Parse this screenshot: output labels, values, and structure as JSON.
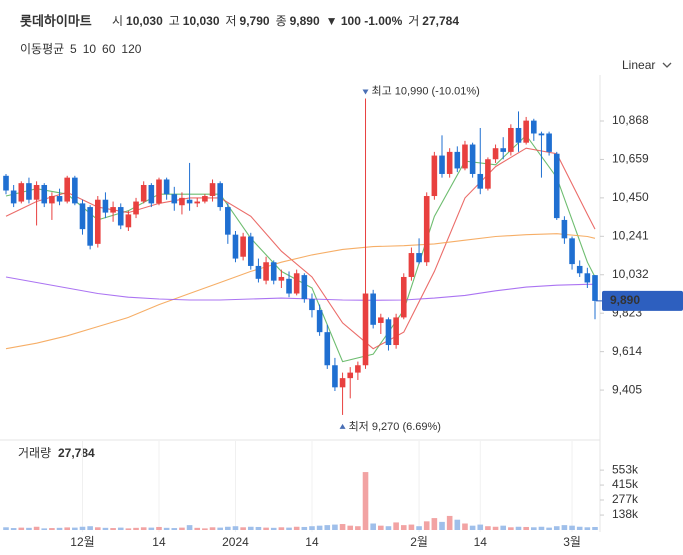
{
  "chart_data": {
    "type": "candlestick",
    "title": "롯데하이마트",
    "summary": [
      {
        "label": "시",
        "value": "10,030"
      },
      {
        "label": "고",
        "value": "10,030"
      },
      {
        "label": "저",
        "value": "9,790"
      },
      {
        "label": "종",
        "value": "9,890"
      }
    ],
    "change": "▼ 100 -1.00%",
    "change_color": "#1f6fd1",
    "volume_summary": {
      "label": "거",
      "value": "27,784"
    },
    "ma_label": "이동평균",
    "scale_label": "Linear",
    "up_color": "#e8403f",
    "down_color": "#1f6fd1",
    "categories": [
      null,
      null,
      null,
      null,
      null,
      null,
      null,
      null,
      null,
      null,
      "12월",
      null,
      null,
      null,
      null,
      null,
      null,
      null,
      null,
      null,
      "14",
      null,
      null,
      null,
      null,
      null,
      null,
      null,
      null,
      null,
      "2024",
      null,
      null,
      null,
      null,
      null,
      null,
      null,
      null,
      null,
      "14",
      null,
      null,
      null,
      null,
      null,
      null,
      null,
      null,
      null,
      null,
      null,
      null,
      null,
      "2월",
      null,
      null,
      null,
      null,
      null,
      null,
      null,
      "14",
      null,
      null,
      null,
      null,
      null,
      null,
      null,
      null,
      null,
      null,
      null,
      "3월",
      null,
      null,
      null
    ],
    "open": [
      10570,
      10490,
      10430,
      10530,
      10440,
      10520,
      10420,
      10460,
      10430,
      10560,
      10420,
      10400,
      10200,
      10440,
      10370,
      10400,
      10290,
      10360,
      10430,
      10520,
      10420,
      10550,
      10470,
      10410,
      10440,
      10420,
      10430,
      10460,
      10530,
      10400,
      10250,
      10130,
      10240,
      10080,
      10000,
      10100,
      10000,
      10010,
      9930,
      10030,
      9900,
      9840,
      9720,
      9540,
      9420,
      9470,
      9500,
      9540,
      9930,
      9770,
      9790,
      9650,
      9800,
      10020,
      10150,
      10100,
      10460,
      10680,
      10580,
      10700,
      10610,
      10740,
      10580,
      10500,
      10660,
      10720,
      10700,
      10830,
      10750,
      10870,
      10800,
      10800,
      10690,
      10330,
      10230,
      10080,
      10040,
      10030
    ],
    "high": [
      10580,
      10520,
      10540,
      10560,
      10540,
      10530,
      10480,
      10500,
      10570,
      10570,
      10440,
      10410,
      10460,
      10480,
      10430,
      10420,
      10380,
      10450,
      10540,
      10530,
      10560,
      10560,
      10510,
      10480,
      10640,
      10450,
      10470,
      10550,
      10540,
      10420,
      10270,
      10260,
      10260,
      10120,
      10130,
      10110,
      10060,
      10050,
      10060,
      10040,
      9930,
      9870,
      9760,
      9580,
      9500,
      9530,
      9560,
      10990,
      9950,
      9820,
      9800,
      9820,
      10040,
      10180,
      10230,
      10480,
      10700,
      10790,
      10720,
      10730,
      10760,
      10750,
      10830,
      10670,
      10740,
      10780,
      10850,
      10920,
      10890,
      10880,
      10810,
      10810,
      10700,
      10350,
      10240,
      10110,
      10070,
      10030
    ],
    "low": [
      10470,
      10400,
      10420,
      10420,
      10300,
      10400,
      10330,
      10410,
      10420,
      10410,
      10250,
      10170,
      10180,
      10340,
      10320,
      10280,
      10270,
      10340,
      10420,
      10400,
      10410,
      10440,
      10380,
      10360,
      10380,
      10400,
      10420,
      10430,
      10380,
      10200,
      10100,
      10110,
      10060,
      9990,
      9980,
      9980,
      9960,
      9910,
      9920,
      9880,
      9800,
      9700,
      9520,
      9400,
      9270,
      9360,
      9460,
      9520,
      9740,
      9710,
      9620,
      9630,
      9790,
      10000,
      10090,
      10080,
      10440,
      10560,
      10560,
      10590,
      10600,
      10560,
      10470,
      10490,
      10640,
      10660,
      10680,
      10700,
      10740,
      10760,
      10560,
      10680,
      10330,
      10200,
      10060,
      10020,
      9960,
      9790
    ],
    "close": [
      10490,
      10420,
      10530,
      10440,
      10520,
      10420,
      10460,
      10430,
      10560,
      10420,
      10280,
      10190,
      10440,
      10370,
      10400,
      10300,
      10360,
      10430,
      10520,
      10420,
      10550,
      10470,
      10420,
      10450,
      10420,
      10430,
      10460,
      10530,
      10400,
      10250,
      10120,
      10240,
      10080,
      10010,
      10100,
      10000,
      10020,
      9930,
      10040,
      9900,
      9840,
      9720,
      9540,
      9420,
      9470,
      9500,
      9540,
      9930,
      9760,
      9800,
      9650,
      9800,
      10020,
      10150,
      10100,
      10460,
      10680,
      10580,
      10700,
      10610,
      10740,
      10580,
      10500,
      10660,
      10720,
      10700,
      10830,
      10750,
      10870,
      10800,
      10790,
      10700,
      10340,
      10230,
      10090,
      10040,
      9990,
      9890
    ],
    "ylim": [
      9188,
      11118
    ],
    "yticks": [
      {
        "value": 10868,
        "label": "10,868"
      },
      {
        "value": 10659,
        "label": "10,659"
      },
      {
        "value": 10450,
        "label": "10,450"
      },
      {
        "value": 10241,
        "label": "10,241"
      },
      {
        "value": 10032,
        "label": "10,032"
      },
      {
        "value": 9823,
        "label": "9,823"
      },
      {
        "value": 9614,
        "label": "9,614"
      },
      {
        "value": 9405,
        "label": "9,405"
      }
    ],
    "last_price": {
      "value": 9890,
      "label": "9,890"
    },
    "last_price_color": "#2d5fbf",
    "high_annotation": {
      "index": 47,
      "text": "최고 10,990 (-10.01%)"
    },
    "low_annotation": {
      "index": 44,
      "text": "최저 9,270 (6.69%)"
    },
    "annotation_color": "#4a6fb5",
    "ma": [
      {
        "name": "5",
        "color": "#55b257",
        "x": [
          0,
          4,
          8,
          12,
          16,
          20,
          24,
          28,
          32,
          36,
          40,
          44,
          48,
          52,
          56,
          60,
          64,
          68,
          72,
          76,
          77
        ],
        "values": [
          10460,
          10500,
          10470,
          10330,
          10380,
          10470,
          10470,
          10470,
          10230,
          10050,
          9960,
          9560,
          9600,
          9840,
          10350,
          10650,
          10630,
          10790,
          10560,
          10100,
          10020
        ]
      },
      {
        "name": "10",
        "color": "#e8524f",
        "x": [
          0,
          4,
          8,
          12,
          16,
          20,
          24,
          28,
          32,
          36,
          40,
          44,
          48,
          52,
          56,
          60,
          64,
          68,
          72,
          76,
          77
        ],
        "values": [
          10350,
          10430,
          10480,
          10400,
          10370,
          10420,
          10450,
          10450,
          10350,
          10160,
          10020,
          9770,
          9630,
          9720,
          10050,
          10450,
          10620,
          10720,
          10690,
          10360,
          10280
        ]
      },
      {
        "name": "60",
        "color": "#f5a04c",
        "x": [
          0,
          4,
          8,
          12,
          16,
          20,
          24,
          28,
          32,
          36,
          40,
          44,
          48,
          52,
          56,
          60,
          64,
          68,
          72,
          76,
          77
        ],
        "values": [
          9630,
          9660,
          9700,
          9750,
          9800,
          9870,
          9930,
          9990,
          10050,
          10100,
          10140,
          10170,
          10185,
          10190,
          10200,
          10220,
          10240,
          10250,
          10255,
          10240,
          10230
        ]
      },
      {
        "name": "120",
        "color": "#9c5cf0",
        "x": [
          0,
          4,
          8,
          12,
          16,
          20,
          24,
          28,
          32,
          36,
          40,
          44,
          48,
          52,
          56,
          60,
          64,
          68,
          72,
          76,
          77
        ],
        "values": [
          10020,
          9990,
          9960,
          9930,
          9910,
          9900,
          9895,
          9895,
          9900,
          9905,
          9900,
          9895,
          9893,
          9895,
          9905,
          9920,
          9945,
          9965,
          9975,
          9980,
          9980
        ]
      }
    ],
    "volume": {
      "label": "거래량",
      "last": "27,784",
      "up_color": "#f2a3a3",
      "down_color": "#9fbfea",
      "values": [
        25000,
        18000,
        22000,
        20000,
        30000,
        15000,
        18000,
        20000,
        24000,
        22000,
        30000,
        35000,
        25000,
        20000,
        18000,
        22000,
        15000,
        20000,
        25000,
        22000,
        28000,
        20000,
        18000,
        22000,
        45000,
        20000,
        15000,
        25000,
        22000,
        30000,
        35000,
        25000,
        30000,
        28000,
        22000,
        20000,
        25000,
        22000,
        30000,
        28000,
        35000,
        40000,
        45000,
        50000,
        55000,
        40000,
        35000,
        535000,
        60000,
        40000,
        35000,
        70000,
        45000,
        50000,
        35000,
        80000,
        110000,
        75000,
        130000,
        95000,
        60000,
        40000,
        50000,
        35000,
        30000,
        40000,
        25000,
        30000,
        28000,
        25000,
        30000,
        22000,
        35000,
        45000,
        40000,
        30000,
        25000,
        27784
      ],
      "ylim": [
        0,
        785000
      ],
      "yticks": [
        {
          "value": 553000,
          "label": "553k"
        },
        {
          "value": 415000,
          "label": "415k"
        },
        {
          "value": 277000,
          "label": "277k"
        },
        {
          "value": 138000,
          "label": "138k"
        }
      ]
    }
  }
}
